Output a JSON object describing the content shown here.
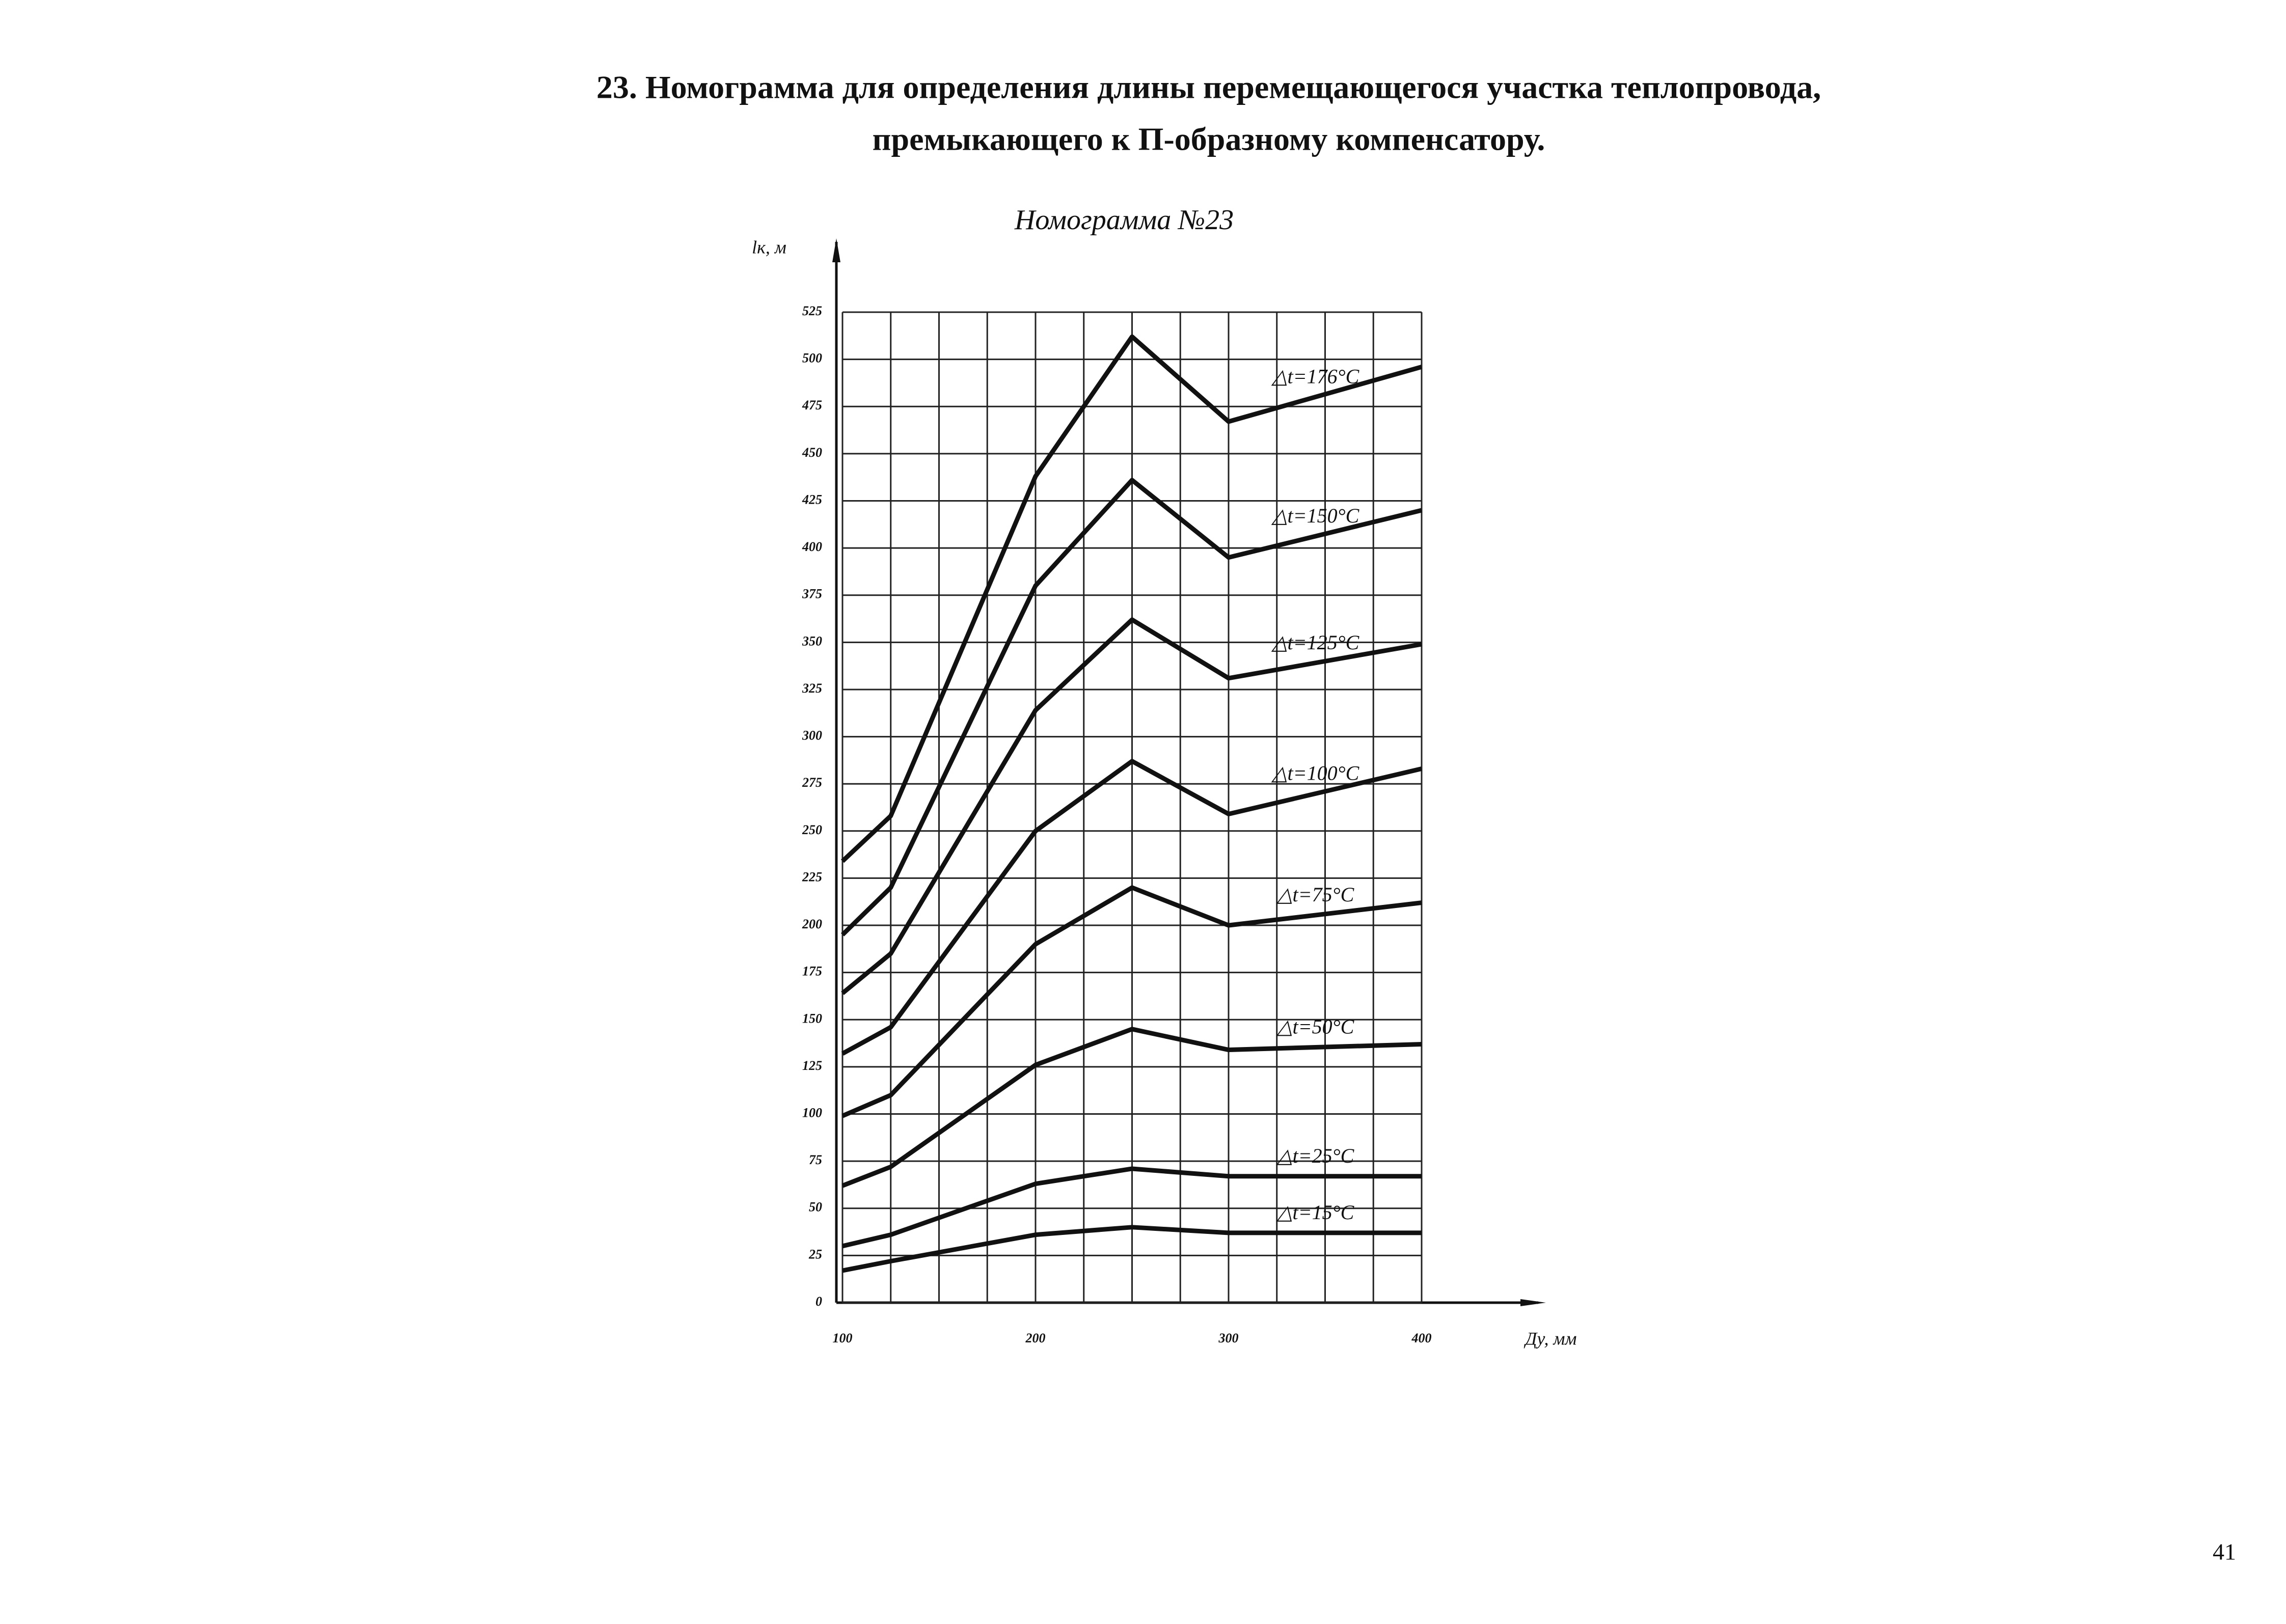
{
  "header": {
    "title_line1": "23. Номограмма для определения длины перемещающегося участка теплопровода,",
    "title_line2": "премыкающего к П-образному компенсатору."
  },
  "chart_data": {
    "type": "line",
    "title": "Номограмма №23",
    "y_label": "lк, м",
    "x_label": "Ду, мм",
    "color": "#111111",
    "grid": true,
    "x": [
      100,
      125,
      200,
      250,
      300,
      400
    ],
    "xlim": [
      100,
      400
    ],
    "xticks": [
      100,
      200,
      300,
      400
    ],
    "ylim": [
      0,
      525
    ],
    "yticks": [
      0,
      25,
      50,
      75,
      100,
      125,
      150,
      175,
      200,
      225,
      250,
      275,
      300,
      325,
      350,
      375,
      400,
      425,
      450,
      475,
      500,
      525
    ],
    "series": [
      {
        "name": "△t=176°C",
        "color": "#111111",
        "values": [
          234,
          258,
          438,
          512,
          467,
          496
        ]
      },
      {
        "name": "△t=150°C",
        "color": "#111111",
        "values": [
          195,
          220,
          380,
          436,
          395,
          420
        ]
      },
      {
        "name": "△t=125°C",
        "color": "#111111",
        "values": [
          164,
          185,
          314,
          362,
          331,
          349
        ]
      },
      {
        "name": "△t=100°C",
        "color": "#111111",
        "values": [
          132,
          146,
          250,
          287,
          259,
          283
        ]
      },
      {
        "name": "△t=75°C",
        "color": "#111111",
        "values": [
          99,
          110,
          190,
          220,
          200,
          212
        ]
      },
      {
        "name": "△t=50°C",
        "color": "#111111",
        "values": [
          62,
          72,
          126,
          145,
          134,
          137
        ]
      },
      {
        "name": "△t=25°C",
        "color": "#111111",
        "values": [
          30,
          36,
          63,
          71,
          67,
          67
        ]
      },
      {
        "name": "△t=15°C",
        "color": "#111111",
        "values": [
          17,
          22,
          36,
          40,
          37,
          37
        ]
      }
    ]
  },
  "footer": {
    "page_number": "41"
  }
}
